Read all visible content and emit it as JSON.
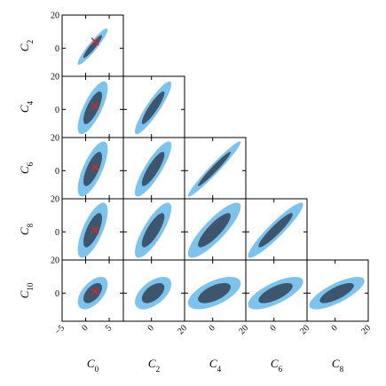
{
  "chart_data": {
    "type": "corner",
    "variables": [
      {
        "name": "C",
        "subscript": "0",
        "center": 1.5,
        "sigma": 1.3,
        "fiducial": 2,
        "lim": [
          -5,
          8
        ],
        "ticks": [
          {
            "value": -5,
            "label": "−5"
          },
          0,
          5
        ]
      },
      {
        "name": "C",
        "subscript": "2",
        "center": 1,
        "sigma": 4.5,
        "fiducial": 4,
        "lim": [
          -17,
          20
        ],
        "ticks": [
          0,
          20
        ]
      },
      {
        "name": "C",
        "subscript": "4",
        "center": 1,
        "sigma": 6.5,
        "fiducial": 2,
        "lim": [
          -17,
          20
        ],
        "ticks": [
          0,
          20
        ]
      },
      {
        "name": "C",
        "subscript": "6",
        "center": 1,
        "sigma": 6.8,
        "fiducial": 2,
        "lim": [
          -17,
          20
        ],
        "ticks": [
          0,
          20
        ]
      },
      {
        "name": "C",
        "subscript": "8",
        "center": 1,
        "sigma": 6.8,
        "fiducial": 1,
        "lim": [
          -17,
          20
        ],
        "ticks": [
          0,
          20
        ]
      },
      {
        "name": "C",
        "subscript": "10",
        "center": 0,
        "sigma": 4,
        "fiducial": 1,
        "lim": [
          -17,
          20
        ],
        "ticks": [
          0,
          20
        ]
      }
    ],
    "correlations": [
      [
        0.93
      ],
      [
        0.75,
        0.9
      ],
      [
        0.72,
        0.85,
        0.97
      ],
      [
        0.7,
        0.8,
        0.85,
        0.93
      ],
      [
        0.55,
        0.55,
        0.6,
        0.7,
        0.75
      ]
    ],
    "contours": [
      {
        "level": 2.45,
        "color": "#7cc4ee"
      },
      {
        "level": 1.52,
        "color": "#3d566e"
      }
    ],
    "marker_color": "#d62728"
  }
}
